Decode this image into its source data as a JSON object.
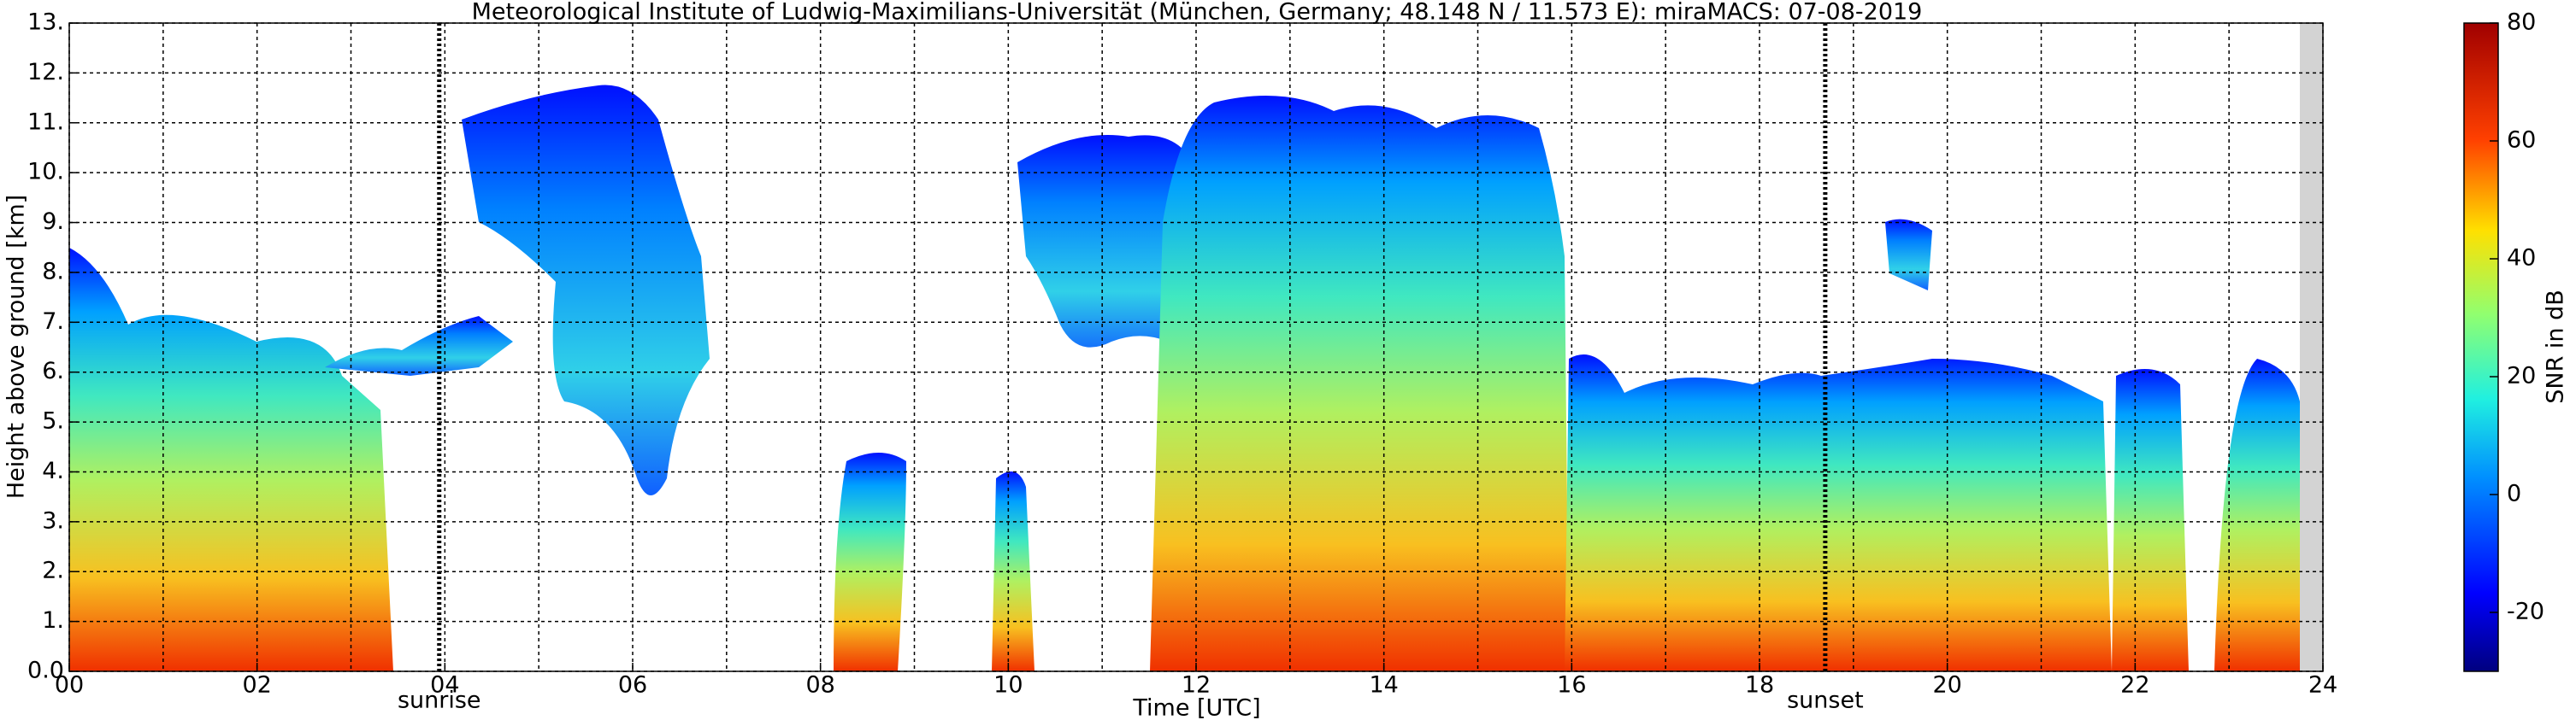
{
  "chart_data": {
    "type": "heatmap",
    "title": "Meteorological Institute of Ludwig-Maximilians-Universität (München, Germany; 48.148 N / 11.573 E):    miraMACS: 07-08-2019",
    "xlabel": "Time [UTC]",
    "ylabel": "Height above ground [km]",
    "xlim": [
      0,
      24
    ],
    "xticks": [
      {
        "value": 0,
        "label": "00"
      },
      {
        "value": 2,
        "label": "02"
      },
      {
        "value": 4,
        "label": "04"
      },
      {
        "value": 6,
        "label": "06"
      },
      {
        "value": 8,
        "label": "08"
      },
      {
        "value": 10,
        "label": "10"
      },
      {
        "value": 12,
        "label": "12"
      },
      {
        "value": 14,
        "label": "14"
      },
      {
        "value": 16,
        "label": "16"
      },
      {
        "value": 18,
        "label": "18"
      },
      {
        "value": 20,
        "label": "20"
      },
      {
        "value": 22,
        "label": "22"
      },
      {
        "value": 24,
        "label": "24"
      }
    ],
    "xminorticks": [
      1,
      3,
      5,
      7,
      9,
      11,
      13,
      15,
      17,
      19,
      21,
      23
    ],
    "ylim": [
      0,
      13
    ],
    "yticks": [
      {
        "value": 0,
        "label": "0.0"
      },
      {
        "value": 1,
        "label": "1."
      },
      {
        "value": 2,
        "label": "2."
      },
      {
        "value": 3,
        "label": "3."
      },
      {
        "value": 4,
        "label": "4."
      },
      {
        "value": 5,
        "label": "5."
      },
      {
        "value": 6,
        "label": "6."
      },
      {
        "value": 7,
        "label": "7."
      },
      {
        "value": 8,
        "label": "8."
      },
      {
        "value": 9,
        "label": "9."
      },
      {
        "value": 10,
        "label": "10."
      },
      {
        "value": 11,
        "label": "11."
      },
      {
        "value": 12,
        "label": "12."
      },
      {
        "value": 13,
        "label": "13."
      }
    ],
    "grid": true,
    "annotations": [
      {
        "text": "sunrise",
        "x": 3.94
      },
      {
        "text": "sunset",
        "x": 18.7
      }
    ],
    "colorbar": {
      "label": "SNR in dB",
      "lim": [
        -30,
        80
      ],
      "ticks": [
        -20,
        0,
        20,
        40,
        60,
        80
      ]
    }
  }
}
